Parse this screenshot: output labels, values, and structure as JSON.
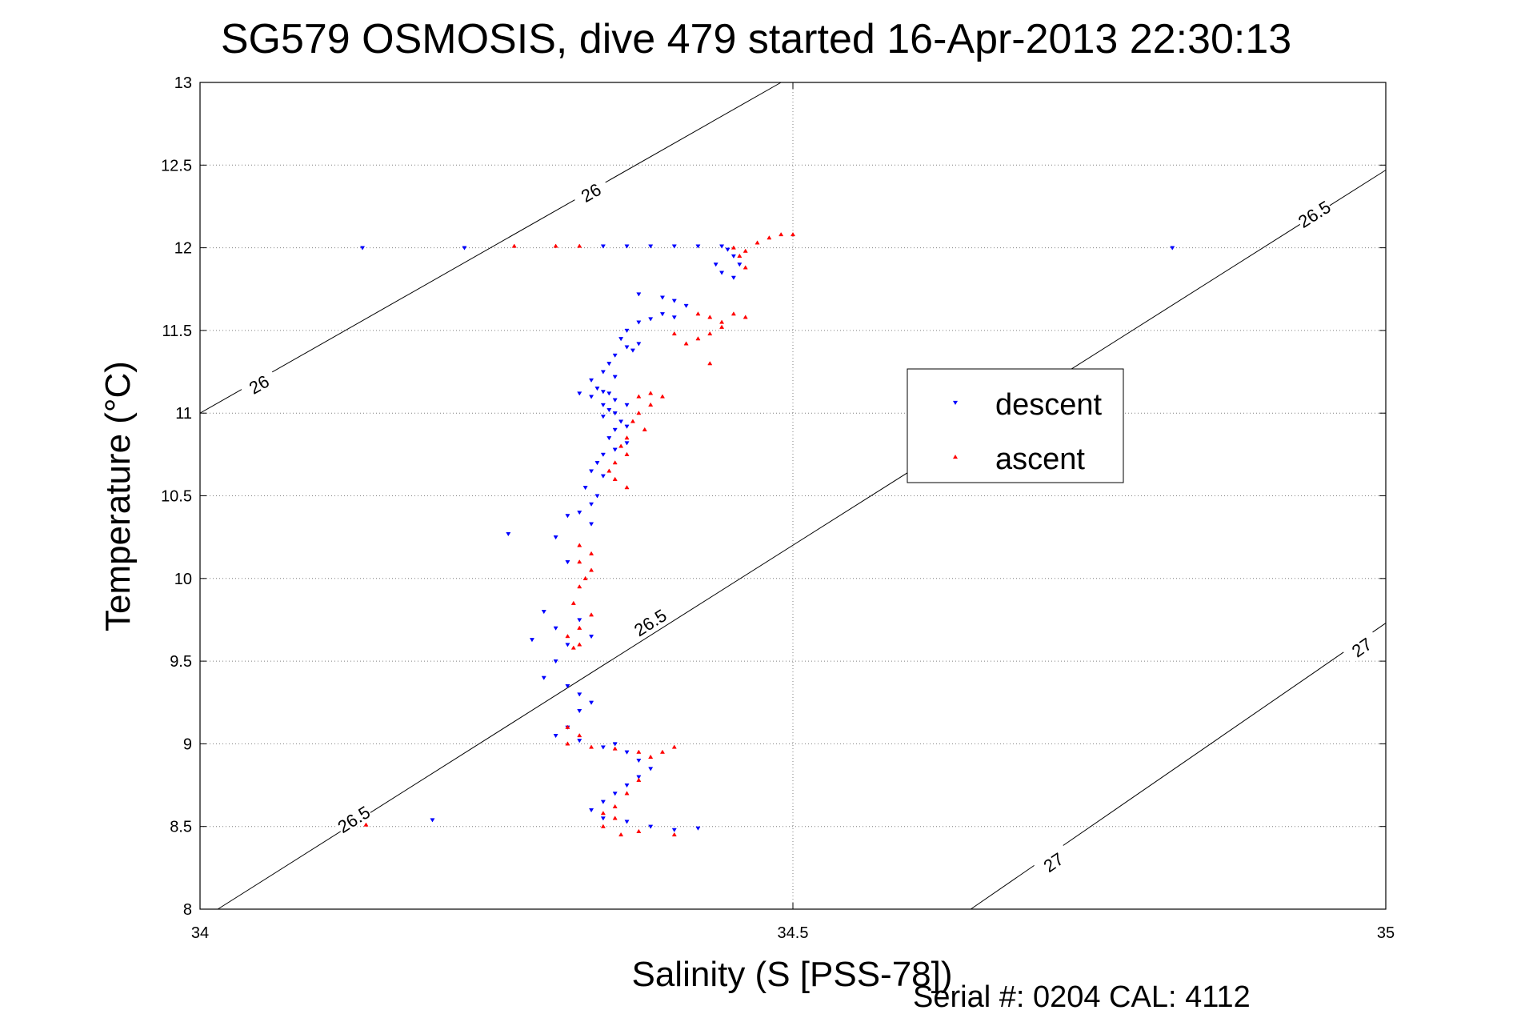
{
  "chart_data": {
    "type": "scatter",
    "title": "SG579 OSMOSIS, dive 479 started 16-Apr-2013 22:30:13",
    "xlabel": "Salinity (S [PSS-78])",
    "ylabel": "Temperature (°C)",
    "footer": "Serial #: 0204  CAL: 4112",
    "xlim": [
      34,
      35
    ],
    "ylim": [
      8,
      13
    ],
    "xticks": [
      "34",
      "34.5",
      "35"
    ],
    "yticks": [
      "8",
      "8.5",
      "9",
      "9.5",
      "10",
      "10.5",
      "11",
      "11.5",
      "12",
      "12.5",
      "13"
    ],
    "grid": true,
    "legend_position": "center-right",
    "colors": {
      "descent": "#0000ff",
      "ascent": "#ff0000",
      "contour": "#000000",
      "grid": "#7f7f7f"
    },
    "contours": [
      {
        "label": "26",
        "points": [
          [
            34.0,
            11.0
          ],
          [
            34.49,
            13.0
          ]
        ],
        "label_positions": [
          [
            34.05,
            11.17
          ],
          [
            34.33,
            12.33
          ]
        ]
      },
      {
        "label": "26.5",
        "points": [
          [
            34.015,
            8.0
          ],
          [
            35.0,
            12.47
          ]
        ],
        "label_positions": [
          [
            34.13,
            8.54
          ],
          [
            34.38,
            9.73
          ],
          [
            34.94,
            12.2
          ]
        ]
      },
      {
        "label": "27",
        "points": [
          [
            34.65,
            8.0
          ],
          [
            35.0,
            9.73
          ]
        ],
        "label_positions": [
          [
            34.72,
            8.28
          ],
          [
            34.98,
            9.58
          ]
        ]
      }
    ],
    "series": [
      {
        "name": "descent",
        "marker": "triangle-down",
        "points": [
          [
            34.137,
            12.0
          ],
          [
            34.223,
            12.0
          ],
          [
            34.34,
            12.01
          ],
          [
            34.36,
            12.01
          ],
          [
            34.38,
            12.01
          ],
          [
            34.4,
            12.01
          ],
          [
            34.42,
            12.01
          ],
          [
            34.44,
            12.01
          ],
          [
            34.445,
            11.99
          ],
          [
            34.45,
            11.95
          ],
          [
            34.455,
            11.9
          ],
          [
            34.44,
            11.85
          ],
          [
            34.435,
            11.9
          ],
          [
            34.45,
            11.82
          ],
          [
            34.82,
            12.0
          ],
          [
            34.37,
            11.72
          ],
          [
            34.39,
            11.7
          ],
          [
            34.4,
            11.68
          ],
          [
            34.41,
            11.65
          ],
          [
            34.39,
            11.6
          ],
          [
            34.4,
            11.58
          ],
          [
            34.38,
            11.57
          ],
          [
            34.37,
            11.55
          ],
          [
            34.36,
            11.5
          ],
          [
            34.355,
            11.45
          ],
          [
            34.37,
            11.42
          ],
          [
            34.36,
            11.4
          ],
          [
            34.365,
            11.38
          ],
          [
            34.35,
            11.35
          ],
          [
            34.345,
            11.3
          ],
          [
            34.34,
            11.25
          ],
          [
            34.35,
            11.22
          ],
          [
            34.33,
            11.2
          ],
          [
            34.335,
            11.15
          ],
          [
            34.34,
            11.13
          ],
          [
            34.345,
            11.12
          ],
          [
            34.32,
            11.12
          ],
          [
            34.33,
            11.1
          ],
          [
            34.35,
            11.08
          ],
          [
            34.34,
            11.05
          ],
          [
            34.36,
            11.05
          ],
          [
            34.345,
            11.02
          ],
          [
            34.35,
            11.0
          ],
          [
            34.34,
            10.98
          ],
          [
            34.355,
            10.95
          ],
          [
            34.36,
            10.92
          ],
          [
            34.35,
            10.9
          ],
          [
            34.345,
            10.85
          ],
          [
            34.36,
            10.82
          ],
          [
            34.35,
            10.78
          ],
          [
            34.34,
            10.75
          ],
          [
            34.335,
            10.7
          ],
          [
            34.33,
            10.65
          ],
          [
            34.34,
            10.62
          ],
          [
            34.325,
            10.55
          ],
          [
            34.335,
            10.5
          ],
          [
            34.33,
            10.45
          ],
          [
            34.32,
            10.4
          ],
          [
            34.31,
            10.38
          ],
          [
            34.33,
            10.33
          ],
          [
            34.26,
            10.27
          ],
          [
            34.3,
            10.25
          ],
          [
            34.31,
            10.1
          ],
          [
            34.29,
            9.8
          ],
          [
            34.3,
            9.7
          ],
          [
            34.32,
            9.75
          ],
          [
            34.33,
            9.65
          ],
          [
            34.31,
            9.6
          ],
          [
            34.3,
            9.5
          ],
          [
            34.29,
            9.4
          ],
          [
            34.31,
            9.35
          ],
          [
            34.32,
            9.3
          ],
          [
            34.33,
            9.25
          ],
          [
            34.32,
            9.2
          ],
          [
            34.31,
            9.1
          ],
          [
            34.3,
            9.05
          ],
          [
            34.32,
            9.02
          ],
          [
            34.35,
            9.0
          ],
          [
            34.34,
            8.98
          ],
          [
            34.36,
            8.95
          ],
          [
            34.37,
            8.9
          ],
          [
            34.38,
            8.85
          ],
          [
            34.37,
            8.8
          ],
          [
            34.36,
            8.75
          ],
          [
            34.35,
            8.7
          ],
          [
            34.34,
            8.65
          ],
          [
            34.33,
            8.6
          ],
          [
            34.34,
            8.55
          ],
          [
            34.36,
            8.53
          ],
          [
            34.38,
            8.5
          ],
          [
            34.4,
            8.48
          ],
          [
            34.42,
            8.49
          ],
          [
            34.196,
            8.54
          ],
          [
            34.28,
            9.63
          ]
        ]
      },
      {
        "name": "ascent",
        "marker": "triangle-up",
        "points": [
          [
            34.3,
            12.01
          ],
          [
            34.32,
            12.01
          ],
          [
            34.265,
            12.01
          ],
          [
            34.45,
            12.0
          ],
          [
            34.46,
            11.98
          ],
          [
            34.47,
            12.03
          ],
          [
            34.48,
            12.06
          ],
          [
            34.49,
            12.08
          ],
          [
            34.5,
            12.08
          ],
          [
            34.455,
            11.95
          ],
          [
            34.46,
            11.88
          ],
          [
            34.42,
            11.6
          ],
          [
            34.43,
            11.58
          ],
          [
            34.44,
            11.55
          ],
          [
            34.45,
            11.6
          ],
          [
            34.46,
            11.58
          ],
          [
            34.44,
            11.52
          ],
          [
            34.43,
            11.48
          ],
          [
            34.42,
            11.45
          ],
          [
            34.41,
            11.42
          ],
          [
            34.4,
            11.48
          ],
          [
            34.43,
            11.3
          ],
          [
            34.37,
            11.1
          ],
          [
            34.38,
            11.12
          ],
          [
            34.39,
            11.1
          ],
          [
            34.38,
            11.05
          ],
          [
            34.37,
            11.0
          ],
          [
            34.365,
            10.95
          ],
          [
            34.375,
            10.9
          ],
          [
            34.36,
            10.85
          ],
          [
            34.355,
            10.8
          ],
          [
            34.36,
            10.75
          ],
          [
            34.35,
            10.7
          ],
          [
            34.345,
            10.65
          ],
          [
            34.35,
            10.6
          ],
          [
            34.36,
            10.55
          ],
          [
            34.32,
            10.2
          ],
          [
            34.33,
            10.15
          ],
          [
            34.32,
            10.1
          ],
          [
            34.33,
            10.05
          ],
          [
            34.325,
            10.0
          ],
          [
            34.32,
            9.95
          ],
          [
            34.315,
            9.85
          ],
          [
            34.33,
            9.78
          ],
          [
            34.32,
            9.7
          ],
          [
            34.31,
            9.65
          ],
          [
            34.32,
            9.6
          ],
          [
            34.315,
            9.58
          ],
          [
            34.31,
            9.1
          ],
          [
            34.32,
            9.05
          ],
          [
            34.31,
            9.0
          ],
          [
            34.33,
            8.98
          ],
          [
            34.35,
            8.97
          ],
          [
            34.37,
            8.95
          ],
          [
            34.38,
            8.92
          ],
          [
            34.39,
            8.95
          ],
          [
            34.4,
            8.98
          ],
          [
            34.37,
            8.78
          ],
          [
            34.36,
            8.7
          ],
          [
            34.35,
            8.62
          ],
          [
            34.34,
            8.58
          ],
          [
            34.35,
            8.55
          ],
          [
            34.34,
            8.5
          ],
          [
            34.355,
            8.45
          ],
          [
            34.37,
            8.47
          ],
          [
            34.4,
            8.45
          ],
          [
            34.14,
            8.51
          ]
        ]
      }
    ]
  }
}
